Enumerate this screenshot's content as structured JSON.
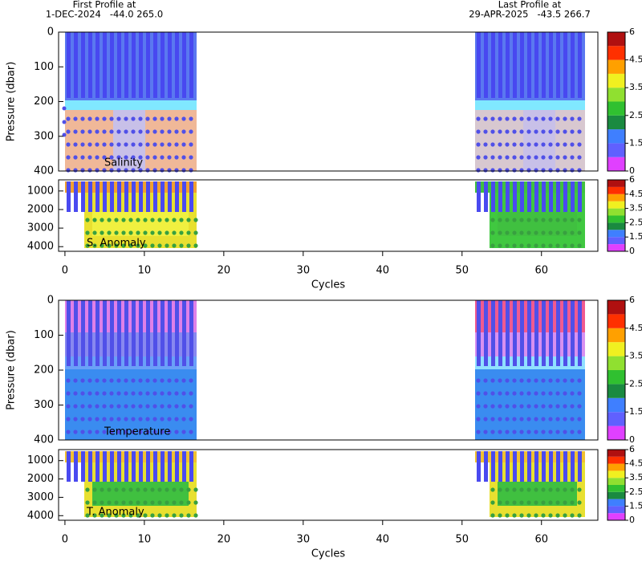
{
  "header": {
    "first_label": "First Profile at",
    "first_info": "1-DEC-2024   -44.0 265.0",
    "last_label": "Last Profile at",
    "last_info": "29-APR-2025   -43.5 266.7"
  },
  "chart_data": [
    {
      "type": "heatmap",
      "label": "Salinity",
      "y_label": "Pressure (dbar)",
      "ylim": [
        0,
        400
      ],
      "yticks": [
        0,
        100,
        200,
        300,
        400
      ],
      "colorbar": {
        "ticks": [
          6,
          4.5,
          3.5,
          2.5,
          1.5,
          0
        ],
        "colors": [
          "#e040ff",
          "#6060ff",
          "#3f7fff",
          "#1a8a40",
          "#30c030",
          "#90e030",
          "#f0f020",
          "#ffa000",
          "#ff3000",
          "#b01010"
        ]
      }
    },
    {
      "type": "heatmap",
      "label": "S. Anomaly",
      "x_label": "Cycles",
      "ylim": [
        400,
        4250
      ],
      "yticks": [
        1000,
        2000,
        3000,
        4000
      ],
      "xlim": [
        -0.8,
        67.1
      ],
      "xticks": [
        0,
        10,
        20,
        30,
        40,
        50,
        60
      ],
      "colorbar": {
        "ticks": [
          6,
          4.5,
          3.5,
          2.5,
          1.5,
          0
        ],
        "colors": [
          "#e040ff",
          "#6060ff",
          "#3f7fff",
          "#1a8a40",
          "#30c030",
          "#90e030",
          "#f0f020",
          "#ffa000",
          "#ff3000",
          "#b01010"
        ]
      }
    },
    {
      "type": "heatmap",
      "label": "Temperature",
      "y_label": "Pressure (dbar)",
      "ylim": [
        0,
        400
      ],
      "yticks": [
        0,
        100,
        200,
        300,
        400
      ],
      "colorbar": {
        "ticks": [
          6,
          4.5,
          3.5,
          2.5,
          1.5,
          0
        ],
        "colors": [
          "#e040ff",
          "#6060ff",
          "#3f7fff",
          "#1a8a40",
          "#30c030",
          "#90e030",
          "#f0f020",
          "#ffa000",
          "#ff3000",
          "#b01010"
        ]
      }
    },
    {
      "type": "heatmap",
      "label": "T. Anomaly",
      "x_label": "Cycles",
      "ylim": [
        400,
        4250
      ],
      "yticks": [
        1000,
        2000,
        3000,
        4000
      ],
      "xlim": [
        -0.8,
        67.1
      ],
      "xticks": [
        0,
        10,
        20,
        30,
        40,
        50,
        60
      ],
      "colorbar": {
        "ticks": [
          6,
          4.5,
          3.5,
          2.5,
          1.5,
          0
        ],
        "colors": [
          "#e040ff",
          "#6060ff",
          "#3f7fff",
          "#1a8a40",
          "#30c030",
          "#90e030",
          "#f0f020",
          "#ffa000",
          "#ff3000",
          "#b01010"
        ]
      }
    }
  ]
}
